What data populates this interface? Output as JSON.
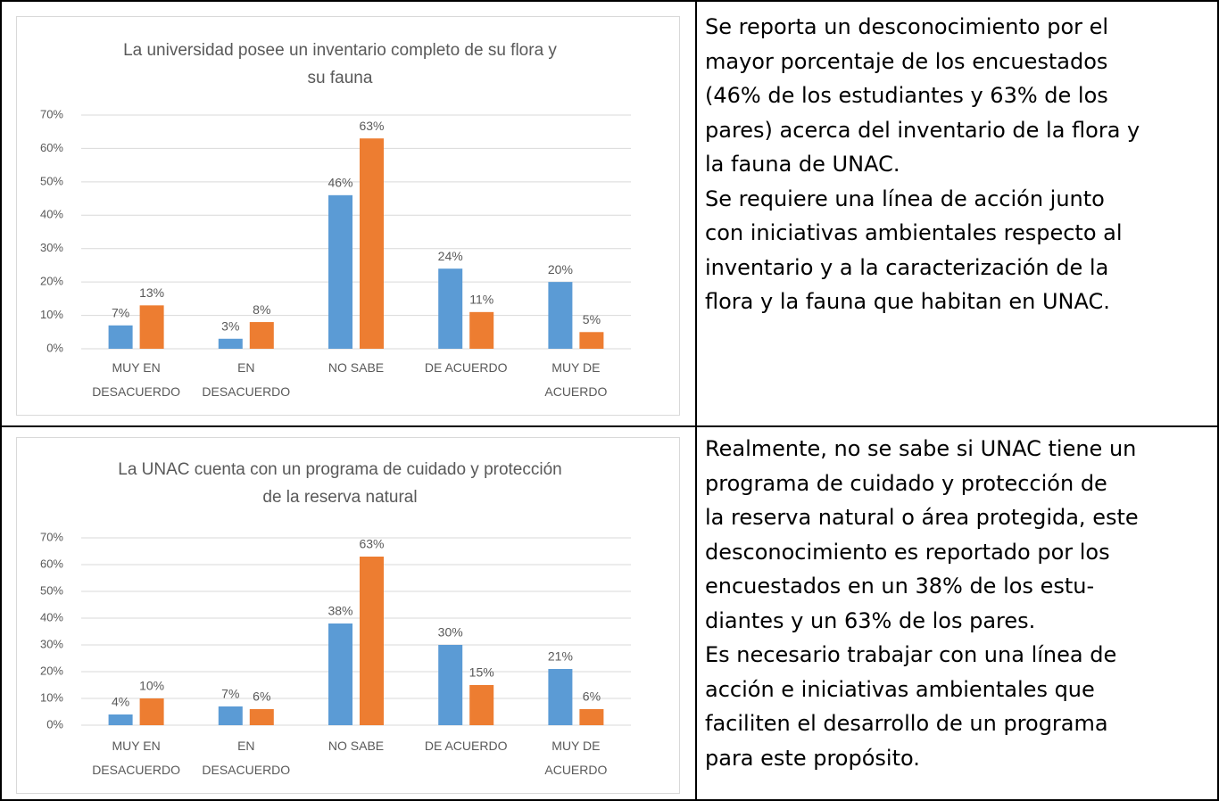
{
  "chart_data": [
    {
      "type": "bar",
      "title": "La universidad posee un inventario completo de su flora y su fauna",
      "categories": [
        "MUY EN\nDESACUERDO",
        "EN\nDESACUERDO",
        "NO SABE",
        "DE ACUERDO",
        "MUY DE\nACUERDO"
      ],
      "series": [
        {
          "color": "#5b9bd5",
          "values": [
            7,
            3,
            46,
            24,
            20
          ],
          "value_labels": [
            "7%",
            "3%",
            "46%",
            "24%",
            "20%"
          ]
        },
        {
          "color": "#ed7d31",
          "values": [
            13,
            8,
            63,
            11,
            5
          ],
          "value_labels": [
            "13%",
            "8%",
            "63%",
            "11%",
            "5%"
          ]
        }
      ],
      "ylim": [
        0,
        70
      ],
      "yticks": [
        {
          "value": 0,
          "label": "0%"
        },
        {
          "value": 10,
          "label": "10%"
        },
        {
          "value": 20,
          "label": "20%"
        },
        {
          "value": 30,
          "label": "30%"
        },
        {
          "value": 40,
          "label": "40%"
        },
        {
          "value": 50,
          "label": "50%"
        },
        {
          "value": 60,
          "label": "60%"
        },
        {
          "value": 70,
          "label": "70%"
        }
      ],
      "grid": true
    },
    {
      "type": "bar",
      "title": "La UNAC cuenta con un programa de cuidado y protección de la reserva natural",
      "categories": [
        "MUY EN\nDESACUERDO",
        "EN\nDESACUERDO",
        "NO SABE",
        "DE ACUERDO",
        "MUY DE\nACUERDO"
      ],
      "series": [
        {
          "color": "#5b9bd5",
          "values": [
            4,
            7,
            38,
            30,
            21
          ],
          "value_labels": [
            "4%",
            "7%",
            "38%",
            "30%",
            "21%"
          ]
        },
        {
          "color": "#ed7d31",
          "values": [
            10,
            6,
            63,
            15,
            6
          ],
          "value_labels": [
            "10%",
            "6%",
            "63%",
            "15%",
            "6%"
          ]
        }
      ],
      "ylim": [
        0,
        70
      ],
      "yticks": [
        {
          "value": 0,
          "label": "0%"
        },
        {
          "value": 10,
          "label": "10%"
        },
        {
          "value": 20,
          "label": "20%"
        },
        {
          "value": 30,
          "label": "30%"
        },
        {
          "value": 40,
          "label": "40%"
        },
        {
          "value": 50,
          "label": "50%"
        },
        {
          "value": 60,
          "label": "60%"
        },
        {
          "value": 70,
          "label": "70%"
        }
      ],
      "grid": true
    }
  ],
  "texts": [
    [
      "Se reporta un desconocimiento por el",
      "mayor porcentaje de los encuestados",
      "(46% de los estudiantes y 63% de los",
      "pares) acerca del inventario de la flora y",
      "la fauna de UNAC.",
      "Se requiere una línea de acción junto",
      "con iniciativas ambientales respecto al",
      "inventario y a la caracterización de la",
      "flora y la fauna que habitan en UNAC."
    ],
    [
      "Realmente, no se sabe si UNAC tiene un",
      "programa de cuidado y protección de",
      "la reserva natural o área protegida, este",
      "desconocimiento es reportado por los",
      "encuestados en un 38% de los estu-",
      "diantes y un 63% de los pares.",
      "Es necesario trabajar con una línea de",
      "acción e iniciativas ambientales que",
      "faciliten el desarrollo de un programa",
      "para este propósito."
    ]
  ]
}
